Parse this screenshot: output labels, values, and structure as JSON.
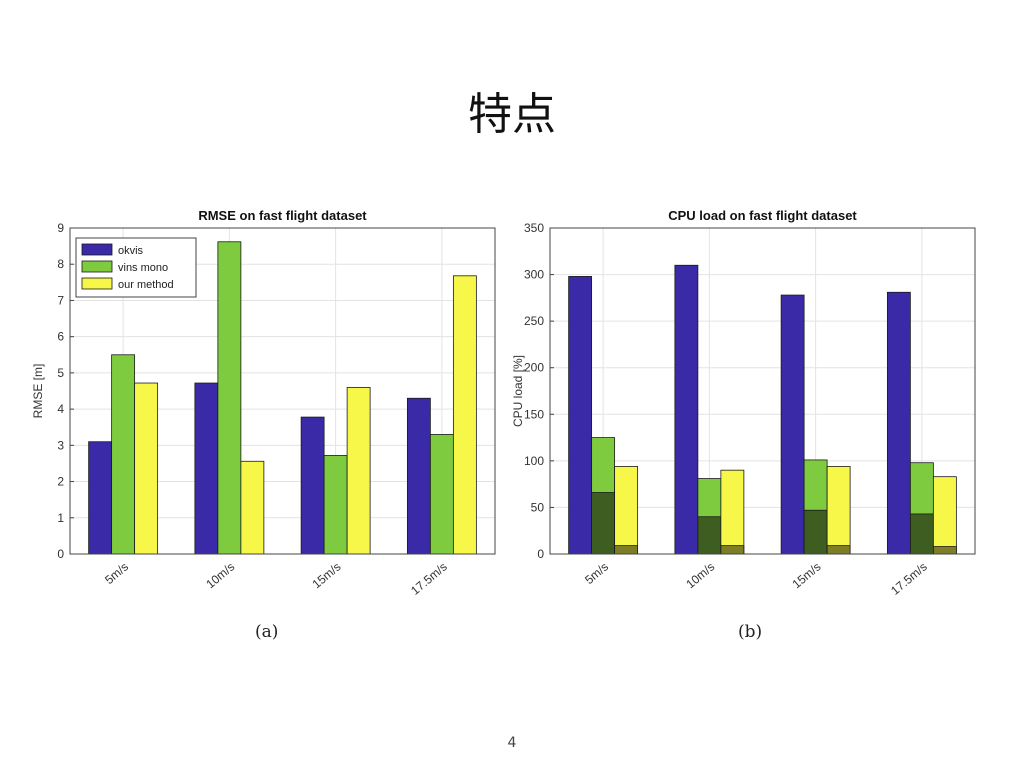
{
  "slide": {
    "title": "特点",
    "page_number": "4"
  },
  "captions": {
    "a": "(a)",
    "b": "(b)"
  },
  "chart_data": [
    {
      "type": "bar",
      "title": "RMSE on fast flight dataset",
      "xlabel": "",
      "ylabel": "RMSE [m]",
      "categories": [
        "5m/s",
        "10m/s",
        "15m/s",
        "17.5m/s"
      ],
      "ylim": [
        0,
        9
      ],
      "yticks": [
        0,
        1,
        2,
        3,
        4,
        5,
        6,
        7,
        8,
        9
      ],
      "grid": true,
      "legend": "top-left",
      "series": [
        {
          "name": "okvis",
          "color": "#3a2aa8",
          "values": [
            3.1,
            4.72,
            3.78,
            4.3
          ]
        },
        {
          "name": "vins mono",
          "color": "#7ecb3f",
          "values": [
            5.5,
            8.62,
            2.72,
            3.3
          ]
        },
        {
          "name": "our method",
          "color": "#f7f74a",
          "values": [
            4.72,
            2.56,
            4.6,
            7.68
          ]
        }
      ]
    },
    {
      "type": "bar",
      "title": "CPU load on fast flight dataset",
      "xlabel": "",
      "ylabel": "CPU load [%]",
      "categories": [
        "5m/s",
        "10m/s",
        "15m/s",
        "17.5m/s"
      ],
      "ylim": [
        0,
        350
      ],
      "yticks": [
        0,
        50,
        100,
        150,
        200,
        250,
        300,
        350
      ],
      "grid": true,
      "series": [
        {
          "color": "#3a2aa8",
          "values": [
            298,
            310,
            278,
            281
          ]
        },
        {
          "color": "#7ecb3f",
          "values": [
            125,
            81,
            101,
            98
          ],
          "inner_values": [
            66,
            40,
            47,
            43
          ],
          "inner_color": "#3e5e21"
        },
        {
          "color": "#f7f74a",
          "values": [
            94,
            90,
            94,
            83
          ],
          "inner_values": [
            9,
            9,
            9,
            8
          ],
          "inner_color": "#7e7e27"
        }
      ]
    }
  ]
}
